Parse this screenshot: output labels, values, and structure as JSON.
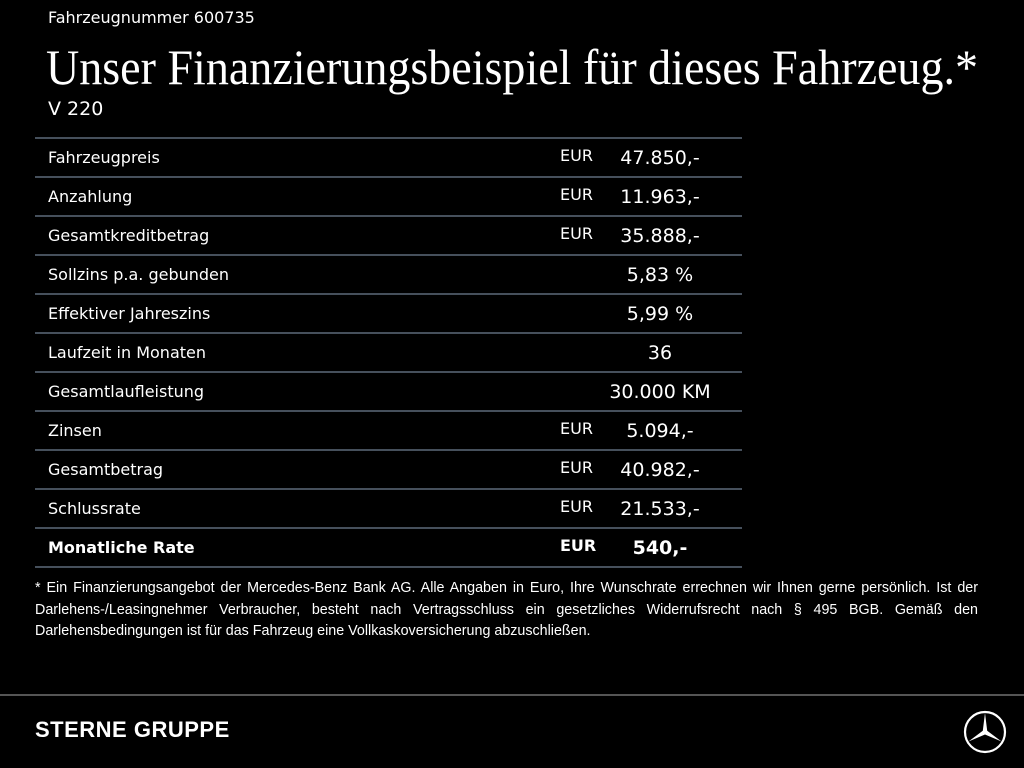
{
  "header": {
    "vehicle_number": "Fahrzeugnummer 600735",
    "title": "Unser Finanzierungsbeispiel für dieses Fahrzeug.*",
    "model": "V 220"
  },
  "table": {
    "rows": [
      {
        "label": "Fahrzeugpreis",
        "currency": "EUR",
        "value": "47.850,-"
      },
      {
        "label": "Anzahlung",
        "currency": "EUR",
        "value": "11.963,-"
      },
      {
        "label": "Gesamtkreditbetrag",
        "currency": "EUR",
        "value": "35.888,-"
      },
      {
        "label": "Sollzins p.a. gebunden",
        "value": "5,83 %"
      },
      {
        "label": "Effektiver Jahreszins",
        "value": "5,99 %"
      },
      {
        "label": "Laufzeit in Monaten",
        "value": "36"
      },
      {
        "label": "Gesamtlaufleistung",
        "value": "30.000 KM"
      },
      {
        "label": "Zinsen",
        "currency": "EUR",
        "value": "5.094,-"
      },
      {
        "label": "Gesamtbetrag",
        "currency": "EUR",
        "value": "40.982,-"
      },
      {
        "label": "Schlussrate",
        "currency": "EUR",
        "value": "21.533,-"
      },
      {
        "label": "Monatliche Rate",
        "currency": "EUR",
        "value": "540,-"
      }
    ]
  },
  "footnote": "* Ein Finanzierungsangebot der Mercedes-Benz Bank AG. Alle Angaben in Euro, Ihre Wunschrate errechnen wir Ihnen gerne persönlich. Ist der Darlehens-/Leasingnehmer Verbraucher, besteht nach Vertragsschluss ein gesetzliches Widerrufsrecht nach § 495 BGB. Gemäß den Darlehensbedingungen ist für das Fahrzeug eine Vollkaskoversicherung abzuschließen.",
  "footer": {
    "brand": "STERNE GRUPPE"
  }
}
